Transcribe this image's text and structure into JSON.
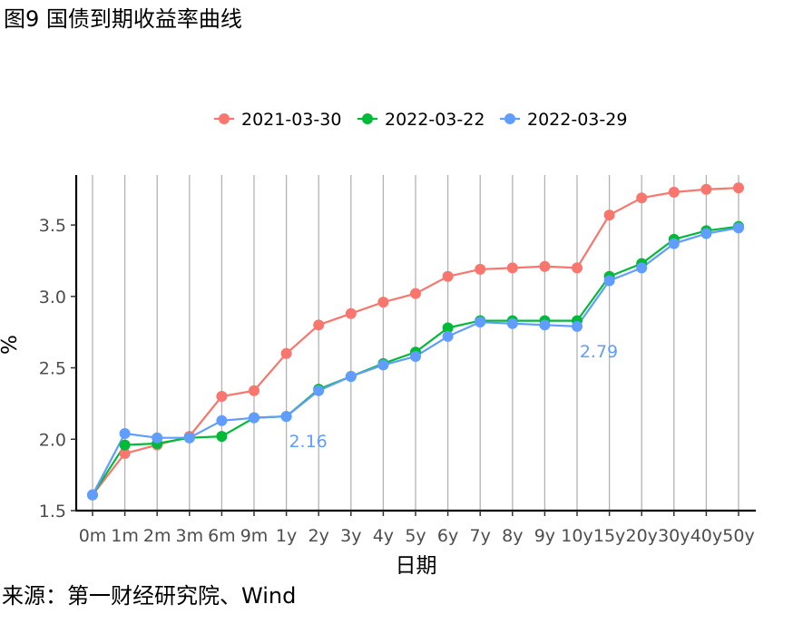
{
  "figure": {
    "title": "图9 国债到期收益率曲线",
    "source": "来源：第一财经研究院、Wind"
  },
  "chart_data": {
    "type": "line",
    "xlabel": "日期",
    "ylabel": "%",
    "categories": [
      "0m",
      "1m",
      "2m",
      "3m",
      "6m",
      "9m",
      "1y",
      "2y",
      "3y",
      "4y",
      "5y",
      "6y",
      "7y",
      "8y",
      "9y",
      "10y",
      "15y",
      "20y",
      "30y",
      "40y",
      "50y"
    ],
    "ylim": [
      1.5,
      3.85
    ],
    "yticks": [
      1.5,
      2.0,
      2.5,
      3.0,
      3.5
    ],
    "ytick_labels": [
      "1.5",
      "2.0",
      "2.5",
      "3.0",
      "3.5"
    ],
    "grid": "vertical lines at each category",
    "legend_position": "top",
    "series": [
      {
        "name": "2021-03-30",
        "color": "#F8766D",
        "values": [
          1.61,
          1.9,
          1.96,
          2.02,
          2.3,
          2.34,
          2.6,
          2.8,
          2.88,
          2.96,
          3.02,
          3.14,
          3.19,
          3.2,
          3.21,
          3.2,
          3.57,
          3.69,
          3.73,
          3.75,
          3.76
        ]
      },
      {
        "name": "2022-03-22",
        "color": "#00BA38",
        "values": [
          1.61,
          1.96,
          1.97,
          2.01,
          2.02,
          2.15,
          2.16,
          2.35,
          2.44,
          2.53,
          2.61,
          2.78,
          2.83,
          2.83,
          2.83,
          2.83,
          3.14,
          3.23,
          3.4,
          3.46,
          3.49
        ]
      },
      {
        "name": "2022-03-29",
        "color": "#619CFF",
        "values": [
          1.61,
          2.04,
          2.01,
          2.01,
          2.13,
          2.15,
          2.16,
          2.34,
          2.44,
          2.52,
          2.58,
          2.72,
          2.82,
          2.81,
          2.8,
          2.79,
          3.11,
          3.2,
          3.37,
          3.44,
          3.48
        ]
      }
    ],
    "annotations": [
      {
        "text": "2.16",
        "category": "1y",
        "value": 2.16,
        "color": "#619CFF"
      },
      {
        "text": "2.79",
        "category": "10y",
        "value": 2.79,
        "color": "#619CFF"
      }
    ]
  }
}
